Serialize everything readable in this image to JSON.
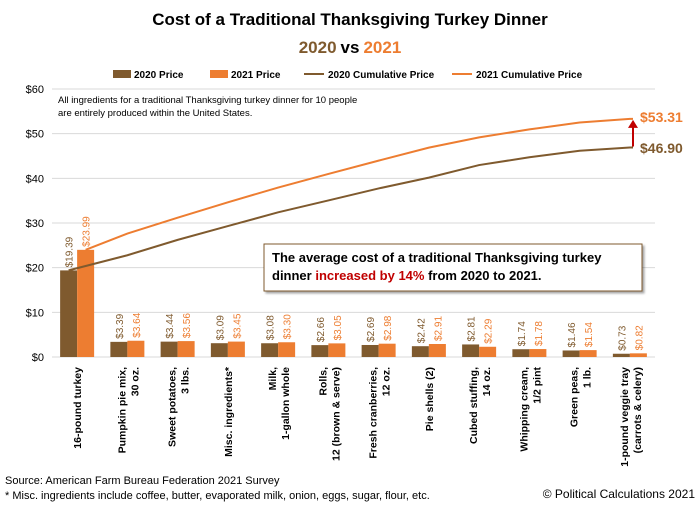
{
  "chart_data": {
    "type": "bar+line",
    "title": "Cost of a Traditional Thanksgiving Turkey Dinner",
    "subtitle": {
      "year_a": "2020",
      "vs": "vs",
      "year_b": "2021"
    },
    "categories": [
      "16-pound turkey",
      "Pumpkin pie mix, 30 oz.",
      "Sweet potatoes, 3 lbs.",
      "Misc. ingredients*",
      "Milk, 1-gallon whole",
      "Rolls, 12 (brown & serve)",
      "Fresh cranberries, 12 oz.",
      "Pie shells (2)",
      "Cubed stuffing, 14 oz.",
      "Whipping cream, 1/2 pint",
      "Green peas, 1 lb.",
      "1-pound veggie tray (carrots & celery)"
    ],
    "category_lines": [
      [
        "16-pound turkey"
      ],
      [
        "Pumpkin pie mix,",
        "30 oz."
      ],
      [
        "Sweet potatoes,",
        "3 lbs."
      ],
      [
        "Misc. ingredients*"
      ],
      [
        "Milk,",
        "1-gallon whole"
      ],
      [
        "Rolls,",
        "12 (brown & serve)"
      ],
      [
        "Fresh cranberries,",
        "12 oz."
      ],
      [
        "Pie shells (2)"
      ],
      [
        "Cubed stuffing,",
        "14 oz."
      ],
      [
        "Whipping cream,",
        "1/2 pint"
      ],
      [
        "Green peas,",
        "1 lb."
      ],
      [
        "1-pound veggie tray",
        "(carrots & celery)"
      ]
    ],
    "series": [
      {
        "name": "2020 Price",
        "kind": "bar",
        "color": "#7f5a2e",
        "values": [
          19.39,
          3.39,
          3.44,
          3.09,
          3.08,
          2.66,
          2.69,
          2.42,
          2.81,
          1.74,
          1.46,
          0.73
        ],
        "labels": [
          "$19.39",
          "$3.39",
          "$3.44",
          "$3.09",
          "$3.08",
          "$2.66",
          "$2.69",
          "$2.42",
          "$2.81",
          "$1.74",
          "$1.46",
          "$0.73"
        ]
      },
      {
        "name": "2021 Price",
        "kind": "bar",
        "color": "#ed7d31",
        "values": [
          23.99,
          3.64,
          3.56,
          3.45,
          3.3,
          3.05,
          2.98,
          2.91,
          2.29,
          1.78,
          1.54,
          0.82
        ],
        "labels": [
          "$23.99",
          "$3.64",
          "$3.56",
          "$3.45",
          "$3.30",
          "$3.05",
          "$2.98",
          "$2.91",
          "$2.29",
          "$1.78",
          "$1.54",
          "$0.82"
        ]
      },
      {
        "name": "2020 Cumulative Price",
        "kind": "line",
        "color": "#7f5a2e",
        "values": [
          19.39,
          22.78,
          26.22,
          29.31,
          32.39,
          35.05,
          37.74,
          40.16,
          42.97,
          44.71,
          46.17,
          46.9
        ]
      },
      {
        "name": "2021 Cumulative Price",
        "kind": "line",
        "color": "#ed7d31",
        "values": [
          23.99,
          27.63,
          31.19,
          34.64,
          37.94,
          40.99,
          43.97,
          46.88,
          49.17,
          50.95,
          52.49,
          53.31
        ]
      }
    ],
    "end_labels": {
      "y2021": "$53.31",
      "y2020": "$46.90"
    },
    "ylim": [
      0,
      60
    ],
    "y_ticks": [
      0,
      10,
      20,
      30,
      40,
      50,
      60
    ],
    "y_tick_labels": [
      "$0",
      "$10",
      "$20",
      "$30",
      "$40",
      "$50",
      "$60"
    ],
    "legend_position": "top",
    "note_lines": [
      "All ingredients for a traditional Thanksgiving turkey dinner for 10 people",
      "are entirely produced within the United States."
    ],
    "callout": {
      "line1": "The average cost of a traditional  Thanksgiving turkey",
      "line2_pre": "dinner ",
      "line2_highlight": "increased by 14%",
      "line2_post": " from 2020 to 2021."
    },
    "source": "Source: American Farm Bureau Federation 2021 Survey",
    "footnote": "* Misc. ingredients include coffee, butter, evaporated milk, onion, eggs, sugar, flour, etc.",
    "credit": "© Political Calculations 2021"
  },
  "colors": {
    "bar2020": "#7f5a2e",
    "bar2021": "#ed7d31",
    "grid": "#d9d9d9",
    "arrow": "#c00000",
    "highlight": "#c00000"
  }
}
